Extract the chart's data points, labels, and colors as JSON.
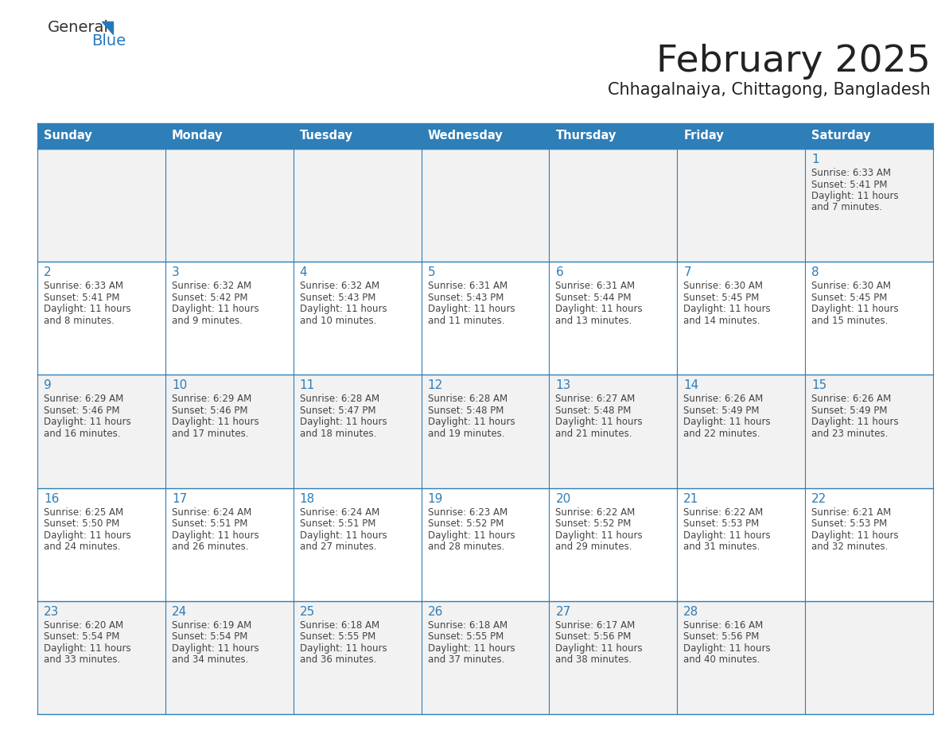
{
  "title": "February 2025",
  "subtitle": "Chhagalnaiya, Chittagong, Bangladesh",
  "header_bg": "#2E7EB8",
  "header_text_color": "#FFFFFF",
  "cell_bg_odd": "#F2F2F2",
  "cell_bg_even": "#FFFFFF",
  "border_color": "#2E7EB8",
  "day_names": [
    "Sunday",
    "Monday",
    "Tuesday",
    "Wednesday",
    "Thursday",
    "Friday",
    "Saturday"
  ],
  "text_color": "#444444",
  "day_number_color": "#2E7EB8",
  "logo_general_color": "#333333",
  "logo_blue_color": "#2479BE",
  "title_color": "#222222",
  "subtitle_color": "#222222",
  "calendar": [
    [
      null,
      null,
      null,
      null,
      null,
      null,
      {
        "day": 1,
        "sunrise": "6:33 AM",
        "sunset": "5:41 PM",
        "daylight": "11 hours and 7 minutes."
      }
    ],
    [
      {
        "day": 2,
        "sunrise": "6:33 AM",
        "sunset": "5:41 PM",
        "daylight": "11 hours and 8 minutes."
      },
      {
        "day": 3,
        "sunrise": "6:32 AM",
        "sunset": "5:42 PM",
        "daylight": "11 hours and 9 minutes."
      },
      {
        "day": 4,
        "sunrise": "6:32 AM",
        "sunset": "5:43 PM",
        "daylight": "11 hours and 10 minutes."
      },
      {
        "day": 5,
        "sunrise": "6:31 AM",
        "sunset": "5:43 PM",
        "daylight": "11 hours and 11 minutes."
      },
      {
        "day": 6,
        "sunrise": "6:31 AM",
        "sunset": "5:44 PM",
        "daylight": "11 hours and 13 minutes."
      },
      {
        "day": 7,
        "sunrise": "6:30 AM",
        "sunset": "5:45 PM",
        "daylight": "11 hours and 14 minutes."
      },
      {
        "day": 8,
        "sunrise": "6:30 AM",
        "sunset": "5:45 PM",
        "daylight": "11 hours and 15 minutes."
      }
    ],
    [
      {
        "day": 9,
        "sunrise": "6:29 AM",
        "sunset": "5:46 PM",
        "daylight": "11 hours and 16 minutes."
      },
      {
        "day": 10,
        "sunrise": "6:29 AM",
        "sunset": "5:46 PM",
        "daylight": "11 hours and 17 minutes."
      },
      {
        "day": 11,
        "sunrise": "6:28 AM",
        "sunset": "5:47 PM",
        "daylight": "11 hours and 18 minutes."
      },
      {
        "day": 12,
        "sunrise": "6:28 AM",
        "sunset": "5:48 PM",
        "daylight": "11 hours and 19 minutes."
      },
      {
        "day": 13,
        "sunrise": "6:27 AM",
        "sunset": "5:48 PM",
        "daylight": "11 hours and 21 minutes."
      },
      {
        "day": 14,
        "sunrise": "6:26 AM",
        "sunset": "5:49 PM",
        "daylight": "11 hours and 22 minutes."
      },
      {
        "day": 15,
        "sunrise": "6:26 AM",
        "sunset": "5:49 PM",
        "daylight": "11 hours and 23 minutes."
      }
    ],
    [
      {
        "day": 16,
        "sunrise": "6:25 AM",
        "sunset": "5:50 PM",
        "daylight": "11 hours and 24 minutes."
      },
      {
        "day": 17,
        "sunrise": "6:24 AM",
        "sunset": "5:51 PM",
        "daylight": "11 hours and 26 minutes."
      },
      {
        "day": 18,
        "sunrise": "6:24 AM",
        "sunset": "5:51 PM",
        "daylight": "11 hours and 27 minutes."
      },
      {
        "day": 19,
        "sunrise": "6:23 AM",
        "sunset": "5:52 PM",
        "daylight": "11 hours and 28 minutes."
      },
      {
        "day": 20,
        "sunrise": "6:22 AM",
        "sunset": "5:52 PM",
        "daylight": "11 hours and 29 minutes."
      },
      {
        "day": 21,
        "sunrise": "6:22 AM",
        "sunset": "5:53 PM",
        "daylight": "11 hours and 31 minutes."
      },
      {
        "day": 22,
        "sunrise": "6:21 AM",
        "sunset": "5:53 PM",
        "daylight": "11 hours and 32 minutes."
      }
    ],
    [
      {
        "day": 23,
        "sunrise": "6:20 AM",
        "sunset": "5:54 PM",
        "daylight": "11 hours and 33 minutes."
      },
      {
        "day": 24,
        "sunrise": "6:19 AM",
        "sunset": "5:54 PM",
        "daylight": "11 hours and 34 minutes."
      },
      {
        "day": 25,
        "sunrise": "6:18 AM",
        "sunset": "5:55 PM",
        "daylight": "11 hours and 36 minutes."
      },
      {
        "day": 26,
        "sunrise": "6:18 AM",
        "sunset": "5:55 PM",
        "daylight": "11 hours and 37 minutes."
      },
      {
        "day": 27,
        "sunrise": "6:17 AM",
        "sunset": "5:56 PM",
        "daylight": "11 hours and 38 minutes."
      },
      {
        "day": 28,
        "sunrise": "6:16 AM",
        "sunset": "5:56 PM",
        "daylight": "11 hours and 40 minutes."
      },
      null
    ]
  ]
}
